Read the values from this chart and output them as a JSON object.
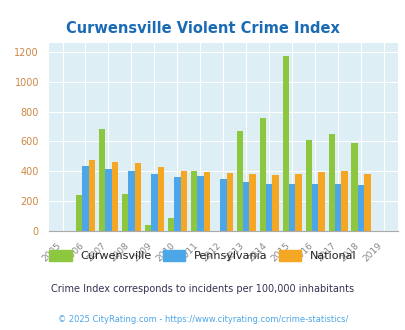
{
  "title": "Curwensville Violent Crime Index",
  "years": [
    2005,
    2006,
    2007,
    2008,
    2009,
    2010,
    2011,
    2012,
    2013,
    2014,
    2015,
    2016,
    2017,
    2018,
    2019
  ],
  "curwensville": [
    0,
    240,
    680,
    250,
    40,
    90,
    400,
    0,
    670,
    760,
    1170,
    610,
    650,
    590,
    0
  ],
  "pennsylvania": [
    0,
    435,
    415,
    405,
    385,
    365,
    370,
    350,
    325,
    315,
    315,
    315,
    315,
    305,
    0
  ],
  "national": [
    0,
    475,
    460,
    455,
    430,
    405,
    395,
    390,
    380,
    375,
    380,
    395,
    400,
    380,
    0
  ],
  "color_curwensville": "#8dc63f",
  "color_pennsylvania": "#4da6e8",
  "color_national": "#f5a623",
  "bg_color": "#ddeef5",
  "ylim": [
    0,
    1260
  ],
  "yticks": [
    0,
    200,
    400,
    600,
    800,
    1000,
    1200
  ],
  "title_color": "#1a6ab5",
  "subtitle": "Crime Index corresponds to incidents per 100,000 inhabitants",
  "footer": "© 2025 CityRating.com - https://www.cityrating.com/crime-statistics/",
  "subtitle_color": "#333355",
  "footer_color": "#4da6e8",
  "ytick_color": "#cc8844",
  "xtick_color": "#888888"
}
